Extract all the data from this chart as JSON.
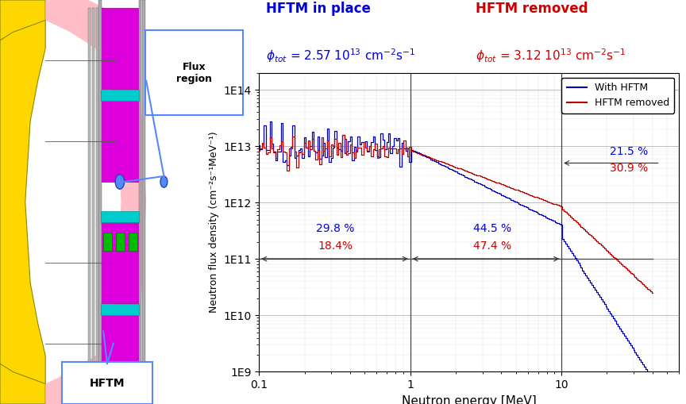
{
  "title_blue": "HFTM in place",
  "title_red": "HFTM removed",
  "xlabel": "Neutron energy [MeV]",
  "ylabel": "Neutron flux density (cm⁻²s⁻¹MeV⁻¹)",
  "legend_blue": "With HFTM",
  "legend_red": "HFTM removed",
  "blue_color": "#0000BB",
  "red_color": "#BB0000",
  "label_blue": "#0000DD",
  "label_red": "#CC0000",
  "pct_blue_1": "29.8 %",
  "pct_blue_2": "44.5 %",
  "pct_blue_3": "21.5 %",
  "pct_red_1": "18.4%",
  "pct_red_2": "47.4 %",
  "pct_red_3": "30.9 %",
  "flux_region_label": "Flux\nregion",
  "hftm_label": "HFTM"
}
